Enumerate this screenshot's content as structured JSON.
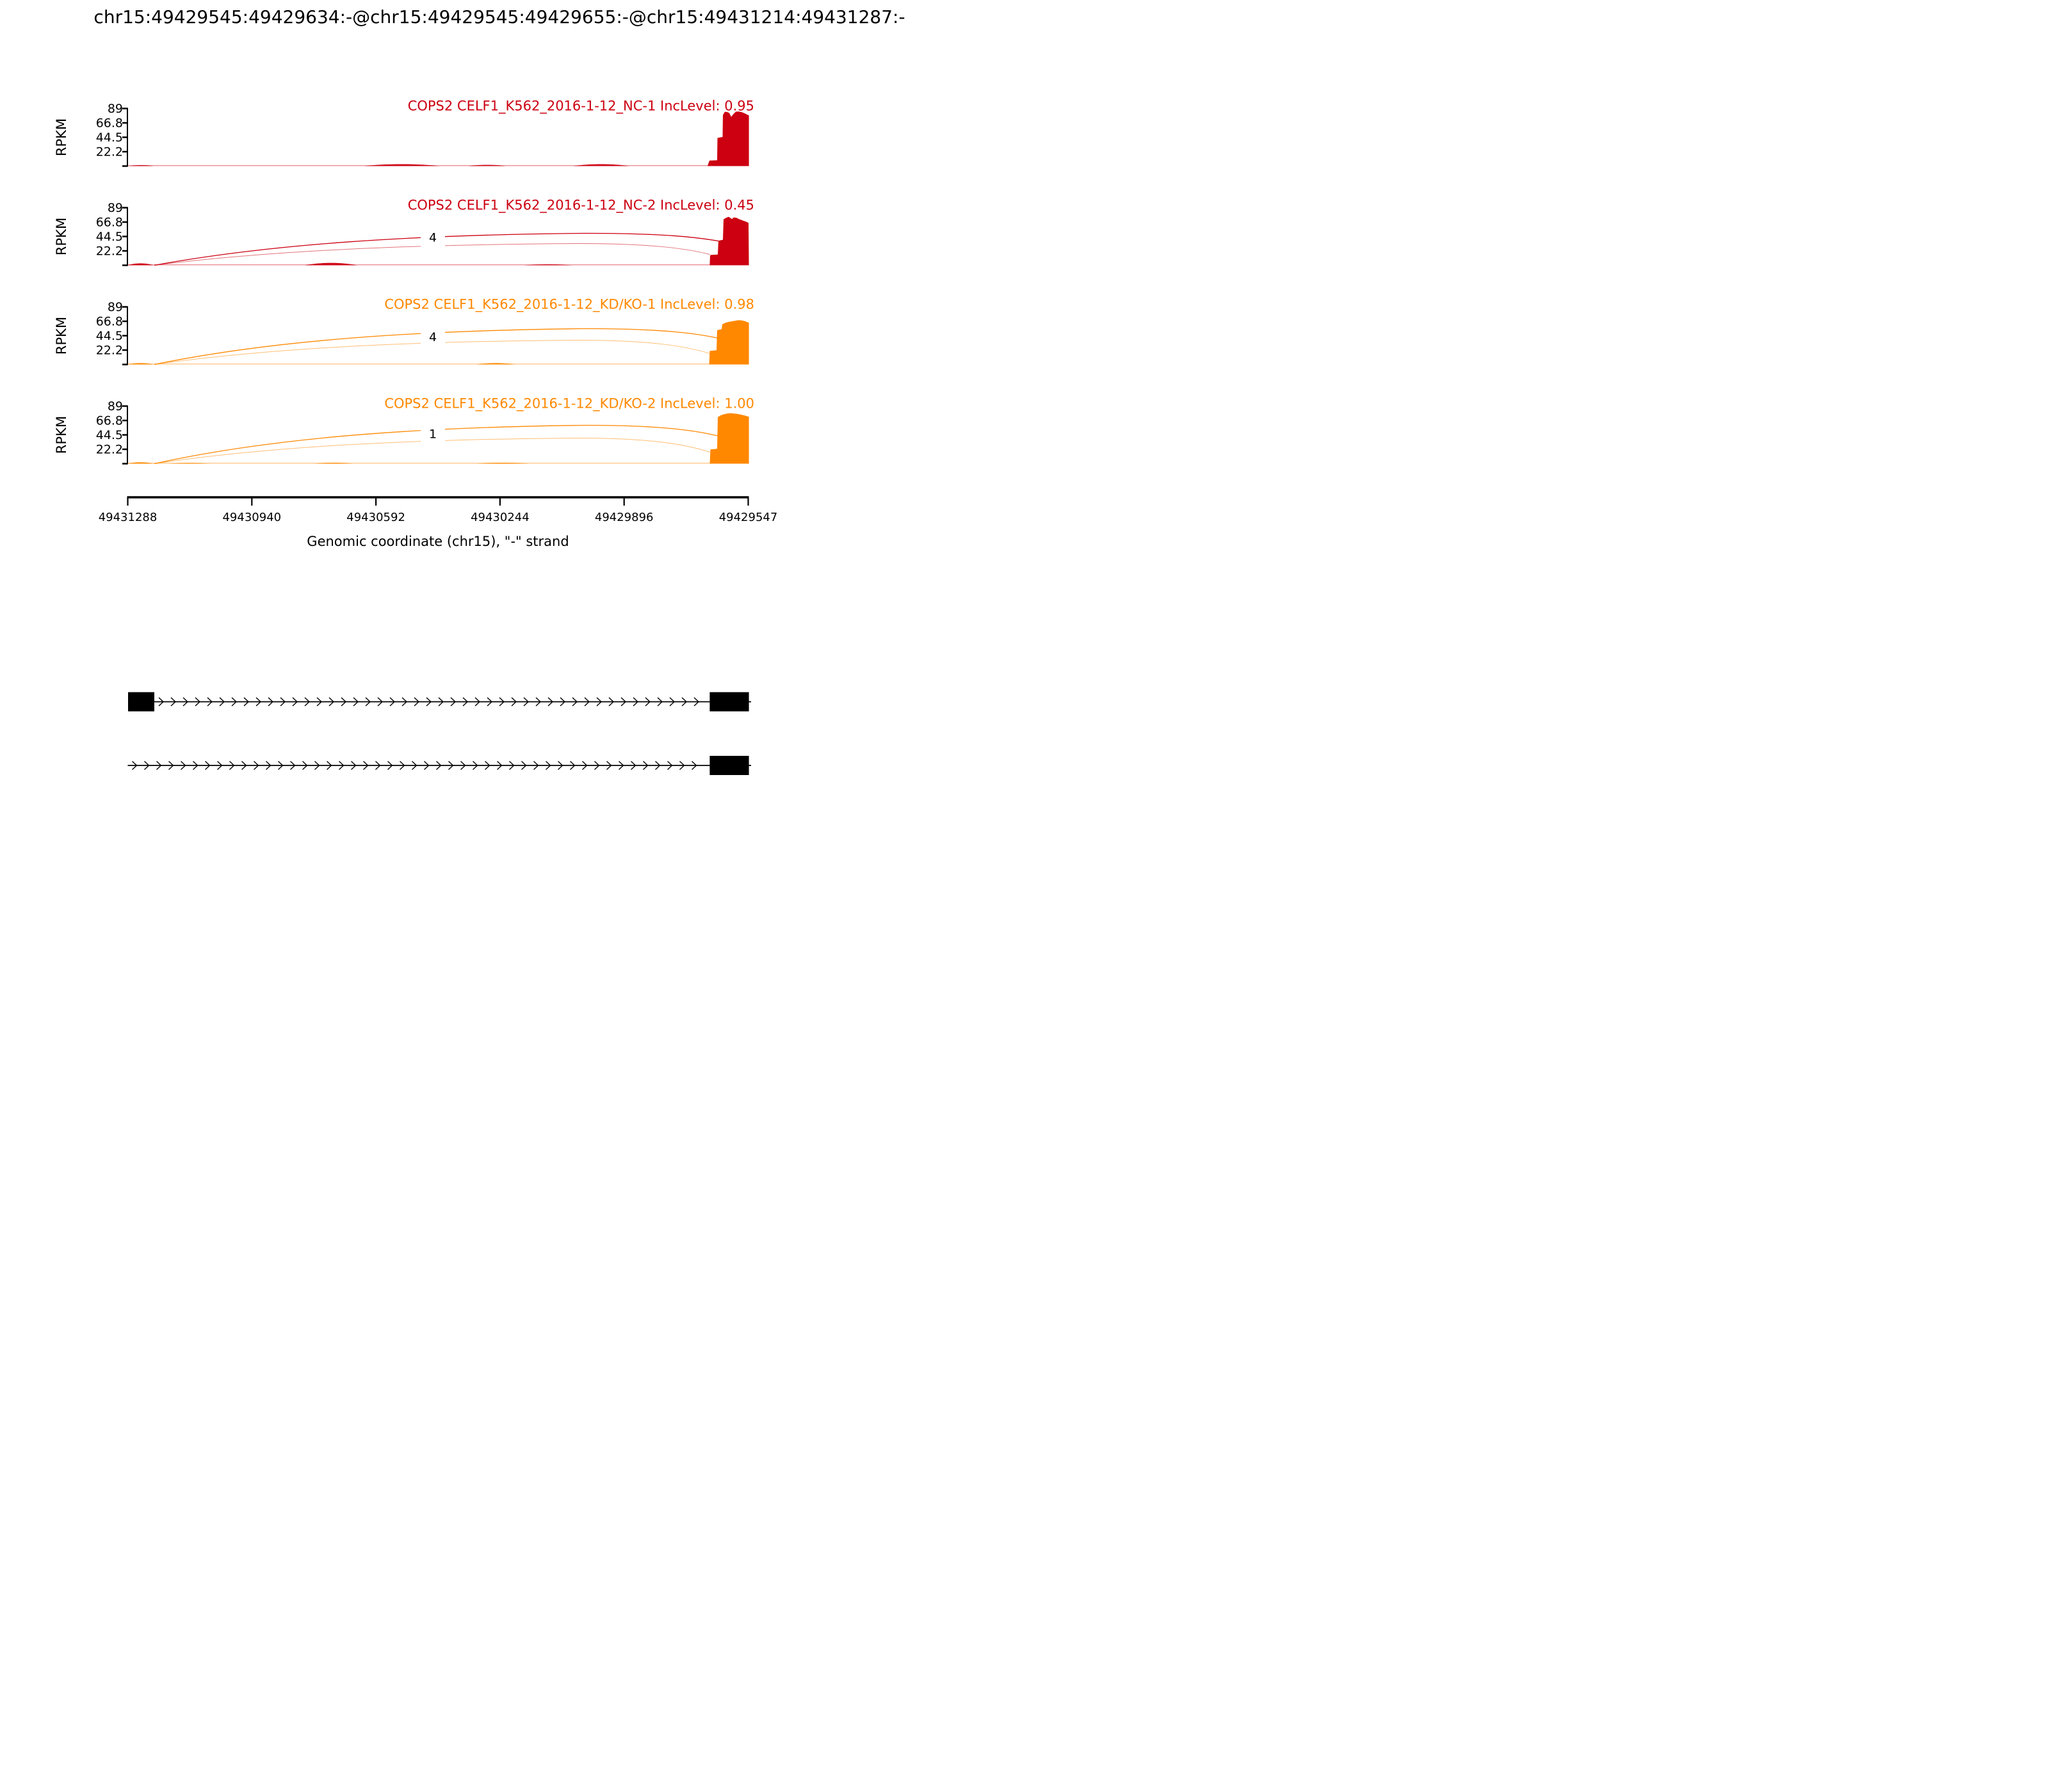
{
  "title": "chr15:49429545:49429634:-@chr15:49429545:49429655:-@chr15:49431214:49431287:-",
  "y_axis": {
    "label": "RPKM",
    "ticks": [
      "89",
      "66.8",
      "44.5",
      "22.2"
    ]
  },
  "x_axis": {
    "label": "Genomic coordinate (chr15), \"-\" strand",
    "ticks": [
      "49431288",
      "49430940",
      "49430592",
      "49430244",
      "49429896",
      "49429547"
    ]
  },
  "colors": {
    "group1": "#CC0011",
    "group2": "#FF8800",
    "axis": "#000000",
    "exon": "#000000"
  },
  "chart_data": {
    "type": "sashimi",
    "title": "chr15:49429545:49429634:-@chr15:49429545:49429655:-@chr15:49431214:49431287:-",
    "xlabel": "Genomic coordinate (chr15), \"-\" strand",
    "ylabel": "RPKM",
    "y_ticks": [
      89,
      66.8,
      44.5,
      22.2
    ],
    "x_tick_coords": [
      49431288,
      49430940,
      49430592,
      49430244,
      49429896,
      49429547
    ],
    "strand": "-",
    "tracks": [
      {
        "label": "COPS2 CELF1_K562_2016-1-12_NC-1 IncLevel: 0.95",
        "sample": "NC-1",
        "inc_level": "0.95",
        "color": "#CC0011",
        "junctions": [],
        "peak": [
          [
            1105,
            0
          ],
          [
            1106,
            3
          ],
          [
            1108,
            8.5
          ],
          [
            1120,
            9
          ],
          [
            1120.5,
            43.5
          ],
          [
            1126,
            44.5
          ],
          [
            1128.5,
            45
          ],
          [
            1129,
            79
          ],
          [
            1132,
            84
          ],
          [
            1136,
            83.5
          ],
          [
            1139,
            82
          ],
          [
            1142,
            76
          ],
          [
            1145,
            80
          ],
          [
            1149,
            84
          ],
          [
            1153,
            84.5
          ],
          [
            1158,
            83.5
          ],
          [
            1162,
            82
          ],
          [
            1166,
            80
          ],
          [
            1169,
            78.5
          ],
          [
            1169.6,
            78
          ],
          [
            1169.6,
            0
          ]
        ],
        "bumps": [
          [
            201,
            240,
            2
          ],
          [
            568,
            686,
            4
          ],
          [
            731,
            790,
            2.5
          ],
          [
            895,
            983,
            4
          ]
        ]
      },
      {
        "label": "COPS2 CELF1_K562_2016-1-12_NC-2 IncLevel: 0.45",
        "sample": "NC-2",
        "inc_level": "0.45",
        "color": "#CC0011",
        "junctions": [
          {
            "count": "4",
            "x1": 241,
            "x2": 1127,
            "apex": 50,
            "end": 37,
            "label_x": 676,
            "label_dy": 44
          },
          {
            "count": "",
            "x1": 241,
            "x2": 1109,
            "apex": 34,
            "end": 17
          }
        ],
        "peak": [
          [
            1108.4,
            0
          ],
          [
            1109,
            15
          ],
          [
            1110.5,
            16
          ],
          [
            1121,
            16.5
          ],
          [
            1122,
            38
          ],
          [
            1129,
            39.5
          ],
          [
            1130,
            71
          ],
          [
            1134,
            73.5
          ],
          [
            1138,
            75
          ],
          [
            1141,
            73
          ],
          [
            1143,
            71.5
          ],
          [
            1146,
            74
          ],
          [
            1150,
            73.5
          ],
          [
            1154,
            71.5
          ],
          [
            1158,
            70
          ],
          [
            1162,
            68.5
          ],
          [
            1165,
            67.5
          ],
          [
            1169,
            65.5
          ],
          [
            1169.6,
            0
          ]
        ],
        "bumps": [
          [
            199,
            240,
            4
          ],
          [
            476,
            558,
            5
          ],
          [
            819,
            893,
            2
          ]
        ]
      },
      {
        "label": "COPS2 CELF1_K562_2016-1-12_KD/KO-1 IncLevel: 0.98",
        "sample": "KD/KO-1",
        "inc_level": "0.98",
        "color": "#FF8800",
        "junctions": [
          {
            "count": "4",
            "x1": 241,
            "x2": 1127,
            "apex": 56,
            "end": 40,
            "label_x": 676,
            "label_dy": 43.5
          },
          {
            "count": "",
            "x1": 241,
            "x2": 1109,
            "apex": 38,
            "end": 17
          }
        ],
        "peak": [
          [
            1107.5,
            0
          ],
          [
            1108.5,
            21
          ],
          [
            1119,
            22
          ],
          [
            1120,
            53
          ],
          [
            1127,
            54.5
          ],
          [
            1128,
            62
          ],
          [
            1133,
            64.5
          ],
          [
            1139,
            66
          ],
          [
            1145,
            67
          ],
          [
            1150,
            68
          ],
          [
            1154,
            68.5
          ],
          [
            1159,
            68
          ],
          [
            1163,
            67
          ],
          [
            1167,
            65.5
          ],
          [
            1169.6,
            64.5
          ],
          [
            1169.6,
            0
          ]
        ],
        "bumps": [
          [
            199,
            240,
            3
          ],
          [
            744,
            804,
            3
          ]
        ]
      },
      {
        "label": "COPS2 CELF1_K562_2016-1-12_KD/KO-2 IncLevel: 1.00",
        "sample": "KD/KO-2",
        "inc_level": "1.00",
        "color": "#FF8800",
        "junctions": [
          {
            "count": "1",
            "x1": 241,
            "x2": 1127,
            "apex": 60,
            "end": 42,
            "label_x": 676,
            "label_dy": 47
          },
          {
            "count": "",
            "x1": 241,
            "x2": 1109,
            "apex": 40,
            "end": 18
          }
        ],
        "peak": [
          [
            1108.5,
            0
          ],
          [
            1109.5,
            22
          ],
          [
            1120,
            23
          ],
          [
            1121,
            72
          ],
          [
            1126,
            75
          ],
          [
            1131,
            76.5
          ],
          [
            1136,
            77.5
          ],
          [
            1141,
            78
          ],
          [
            1146,
            77.5
          ],
          [
            1151,
            77
          ],
          [
            1156,
            76
          ],
          [
            1161,
            75
          ],
          [
            1165,
            74
          ],
          [
            1169.6,
            72.5
          ],
          [
            1169.6,
            0
          ]
        ],
        "bumps": [
          [
            199,
            240,
            3
          ],
          [
            264,
            328,
            1.5
          ],
          [
            491,
            551,
            2
          ],
          [
            744,
            827,
            2
          ]
        ]
      }
    ],
    "gene_model": {
      "exons_bp": [
        [
          49431214,
          49431287
        ],
        [
          49429545,
          49429655
        ]
      ],
      "transcripts": [
        {
          "line": [
            241,
            1108.4
          ],
          "y": 1096.5,
          "exons": [
            [
              200,
              241
            ],
            [
              1108.4,
              1169.6
            ]
          ],
          "stub": [
            1169.6,
            1173
          ]
        },
        {
          "line": [
            199.5,
            1108.4
          ],
          "y": 1196,
          "exons": [
            [
              1108.4,
              1169.6
            ]
          ],
          "stub": [
            1169.6,
            1173
          ]
        }
      ]
    }
  }
}
